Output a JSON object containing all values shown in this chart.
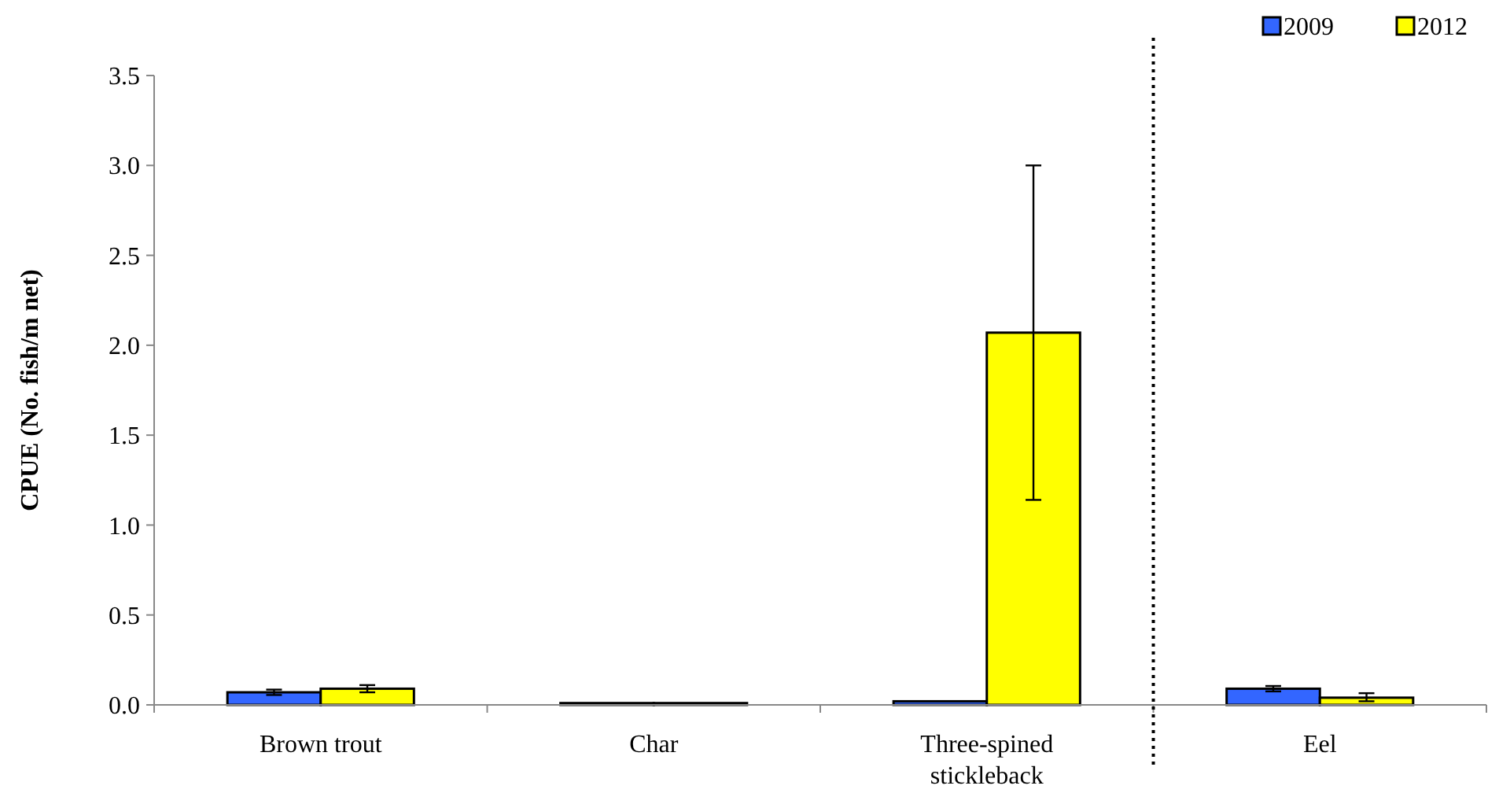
{
  "chart_data": {
    "type": "bar",
    "ylabel": "CPUE (No. fish/m net)",
    "categories": [
      "Brown trout",
      "Char",
      "Three-spined stickleback",
      "Eel"
    ],
    "series": [
      {
        "name": "2009",
        "color": "#3366ff",
        "values": [
          0.07,
          0.01,
          0.02,
          0.09
        ],
        "errors": [
          0.015,
          null,
          null,
          0.015
        ]
      },
      {
        "name": "2012",
        "color": "#ffff00",
        "values": [
          0.09,
          0.01,
          2.07,
          0.04
        ],
        "errors": [
          [
            0.07,
            0.11
          ],
          null,
          [
            1.14,
            3.0
          ],
          [
            0.02,
            0.065
          ]
        ]
      }
    ],
    "ylim": [
      0,
      3.5
    ],
    "yticks": [
      {
        "value": 0,
        "label": "0.0"
      },
      {
        "value": 0.5,
        "label": "0.5"
      },
      {
        "value": 1,
        "label": "1.0"
      },
      {
        "value": 1.5,
        "label": "1.5"
      },
      {
        "value": 2,
        "label": "2.0"
      },
      {
        "value": 2.5,
        "label": "2.5"
      },
      {
        "value": 3,
        "label": "3.0"
      },
      {
        "value": 3.5,
        "label": "3.5"
      }
    ],
    "legend": "top right",
    "grid": false
  }
}
